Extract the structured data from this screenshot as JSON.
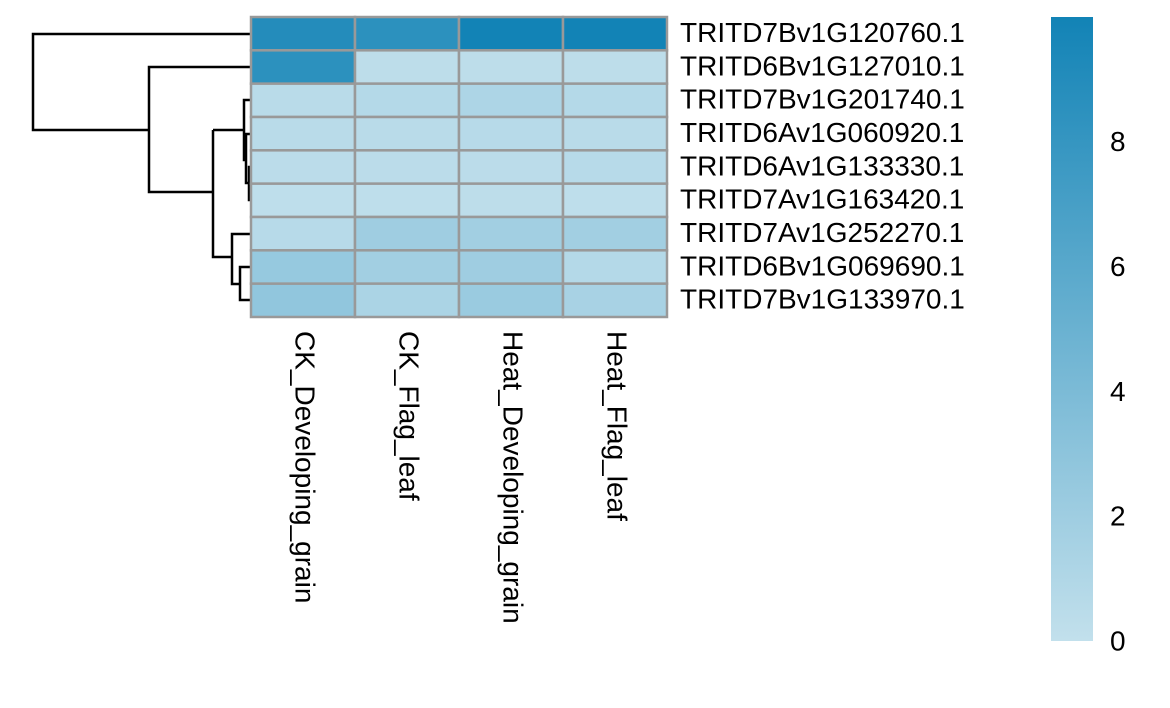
{
  "chart_data": {
    "type": "heatmap",
    "rows": [
      "TRITD7Bv1G120760.1",
      "TRITD6Bv1G127010.1",
      "TRITD7Bv1G201740.1",
      "TRITD6Av1G060920.1",
      "TRITD6Av1G133330.1",
      "TRITD7Av1G163420.1",
      "TRITD7Av1G252270.1",
      "TRITD6Bv1G069690.1",
      "TRITD7Bv1G133970.1"
    ],
    "columns": [
      "CK_Developing_grain",
      "CK_Flag_leaf",
      "Heat_Developing_grain",
      "Heat_Flag_leaf"
    ],
    "values": [
      [
        9,
        8.5,
        10,
        10
      ],
      [
        8.5,
        0.3,
        0.3,
        0.3
      ],
      [
        0.5,
        0.8,
        1.2,
        0.8
      ],
      [
        0.5,
        0.5,
        0.6,
        0.5
      ],
      [
        0.4,
        0.4,
        0.4,
        0.6
      ],
      [
        0.2,
        0.2,
        0.3,
        0.2
      ],
      [
        0.6,
        2.0,
        1.8,
        1.8
      ],
      [
        2.5,
        1.8,
        2.0,
        0.8
      ],
      [
        2.8,
        1.3,
        2.3,
        1.5
      ]
    ],
    "colors": [
      "#c2e0ec",
      "#1283b6"
    ],
    "clim": [
      0,
      10
    ],
    "cticks": [
      0,
      2,
      4,
      6,
      8
    ]
  }
}
